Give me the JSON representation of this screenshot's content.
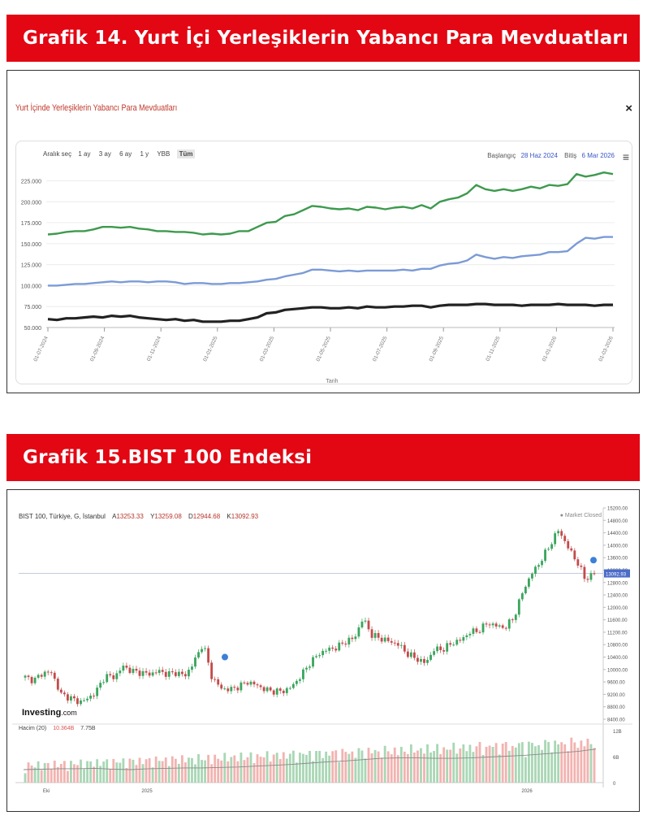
{
  "sections": [
    {
      "heading": "Grafik 14. Yurt İçi Yerleşiklerin Yabancı Para Mevduatları"
    },
    {
      "heading": "Grafik 15.BIST 100 Endeksi"
    }
  ],
  "chart1": {
    "panel_title": "Yurt İçinde Yerleşiklerin Yabancı Para Mevduatları",
    "close_symbol": "×",
    "range_label": "Aralık seç",
    "range_buttons": [
      "1 ay",
      "3 ay",
      "6 ay",
      "1 y",
      "YBB",
      "Tüm"
    ],
    "start_label": "Başlangıç",
    "start_date": "28 Haz 2024",
    "end_label": "Bitiş",
    "end_date": "6 Mar 2026",
    "menu_symbol": "≡"
  },
  "chart2": {
    "symbol": "BIST 100, Türkiye, G, İstanbul",
    "ohlc": [
      {
        "key": "A",
        "value": "13253.33"
      },
      {
        "key": "Y",
        "value": "13259.08"
      },
      {
        "key": "D",
        "value": "12944.68"
      },
      {
        "key": "K",
        "value": "13092.93"
      }
    ],
    "market_status": "● Market Closed",
    "logo": "Investing",
    "logo_suffix": ".com",
    "volume_label": "Hacim (20)",
    "volume_value1": "10.364B",
    "volume_value2": "7.75B",
    "last_price_label": "13092.93"
  },
  "chart_data": [
    {
      "type": "line",
      "title": "Yurt İçinde Yerleşiklerin Yabancı Para Mevduatları",
      "xlabel": "Tarih",
      "ylabel": "",
      "ylim": [
        50000,
        240000
      ],
      "yticks": [
        50000,
        75000,
        100000,
        125000,
        150000,
        175000,
        200000,
        225000
      ],
      "ytick_labels": [
        "50.000",
        "75.000",
        "100.000",
        "125.000",
        "150.000",
        "175.000",
        "200.000",
        "225.000"
      ],
      "xtick_labels": [
        "01-07-2024",
        "01-09-2024",
        "01-11-2024",
        "01-01-2025",
        "01-03-2025",
        "01-05-2025",
        "01-07-2025",
        "01-09-2025",
        "01-11-2025",
        "01-01-2026",
        "01-03-2026"
      ],
      "colors": [
        "#3d9a4e",
        "#7b9bd6",
        "#222222"
      ],
      "series": [
        {
          "name": "",
          "values": [
            161000,
            162000,
            164000,
            165000,
            165000,
            167000,
            170000,
            170000,
            169000,
            170000,
            168000,
            167000,
            165000,
            165000,
            164000,
            164000,
            163000,
            161000,
            162000,
            161000,
            162000,
            165000,
            165000,
            170000,
            175000,
            176000,
            183000,
            185000,
            190000,
            195000,
            194000,
            192000,
            191000,
            192000,
            190000,
            194000,
            193000,
            191000,
            193000,
            194000,
            192000,
            196000,
            192000,
            200000,
            203000,
            205000,
            210000,
            220000,
            215000,
            213000,
            215000,
            213000,
            215000,
            218000,
            216000,
            220000,
            219000,
            221000,
            233000,
            230000,
            232000,
            235000,
            233000
          ]
        },
        {
          "name": "",
          "values": [
            100000,
            100000,
            101000,
            102000,
            102000,
            103000,
            104000,
            105000,
            104000,
            105000,
            105000,
            104000,
            105000,
            105000,
            104000,
            102000,
            103000,
            103000,
            102000,
            102000,
            103000,
            103000,
            104000,
            105000,
            107000,
            108000,
            111000,
            113000,
            115000,
            119000,
            119000,
            118000,
            117000,
            118000,
            117000,
            118000,
            118000,
            118000,
            118000,
            119000,
            118000,
            120000,
            120000,
            124000,
            126000,
            127000,
            130000,
            137000,
            134000,
            132000,
            134000,
            133000,
            135000,
            136000,
            137000,
            140000,
            140000,
            141000,
            150000,
            157000,
            156000,
            158000,
            158000
          ]
        },
        {
          "name": "",
          "values": [
            60000,
            59000,
            61000,
            61000,
            62000,
            63000,
            62000,
            64000,
            63000,
            64000,
            62000,
            61000,
            60000,
            59000,
            60000,
            58000,
            59000,
            57000,
            57000,
            57000,
            58000,
            58000,
            60000,
            62000,
            67000,
            68000,
            71000,
            72000,
            73000,
            74000,
            74000,
            73000,
            73000,
            74000,
            73000,
            75000,
            74000,
            74000,
            75000,
            75000,
            76000,
            76000,
            74000,
            76000,
            77000,
            77000,
            77000,
            78000,
            78000,
            77000,
            77000,
            77000,
            76000,
            77000,
            77000,
            77000,
            78000,
            77000,
            77000,
            77000,
            76000,
            77000,
            77000
          ]
        }
      ]
    },
    {
      "type": "candlestick",
      "title": "BIST 100",
      "ylim": [
        8400,
        15200
      ],
      "yticks": [
        8400,
        8800,
        9200,
        9600,
        10000,
        10400,
        10800,
        11200,
        11600,
        12000,
        12400,
        12800,
        13200,
        13600,
        14000,
        14400,
        14800,
        15200
      ],
      "ytick_labels": [
        "8400.00",
        "8800.00",
        "9200.00",
        "9600.00",
        "10000.00",
        "10400.00",
        "10800.00",
        "11200.00",
        "11600.00",
        "12000.00",
        "12400.00",
        "12800.00",
        "13200.00",
        "13600.00",
        "14000.00",
        "14400.00",
        "14800.00",
        "15200.00"
      ],
      "xtick_labels": [
        "Eki",
        "2025",
        "2026"
      ],
      "last_price": 13092.93,
      "up_color": "#3aa55d",
      "down_color": "#c44a4a",
      "close_path": [
        9750,
        9650,
        9900,
        9900,
        9200,
        9100,
        8950,
        9050,
        9300,
        9800,
        9750,
        10100,
        9950,
        9900,
        9850,
        9950,
        9850,
        9900,
        9800,
        10250,
        10850,
        9750,
        9400,
        9350,
        9450,
        9600,
        9500,
        9350,
        9300,
        9300,
        9450,
        9800,
        10200,
        10500,
        10650,
        10700,
        10900,
        11000,
        11650,
        11100,
        11000,
        10900,
        10800,
        10500,
        10350,
        10200,
        10650,
        10650,
        10850,
        10950,
        11200,
        11250,
        11500,
        11400,
        11350,
        11700,
        12550,
        13100,
        13500,
        14000,
        14500,
        13950,
        13500,
        12900,
        13093
      ],
      "volume_ma": [
        3.0,
        3.1,
        3.2,
        3.2,
        3.3,
        3.1,
        3.0,
        3.2,
        3.3,
        3.4,
        3.4,
        3.5,
        3.6,
        3.8,
        4.0,
        4.2,
        4.5,
        4.8,
        5.0,
        5.3,
        5.6,
        5.7,
        5.7,
        5.6,
        5.6,
        5.7,
        5.9,
        6.1,
        6.3,
        6.6,
        6.9,
        7.2,
        7.75
      ]
    }
  ]
}
